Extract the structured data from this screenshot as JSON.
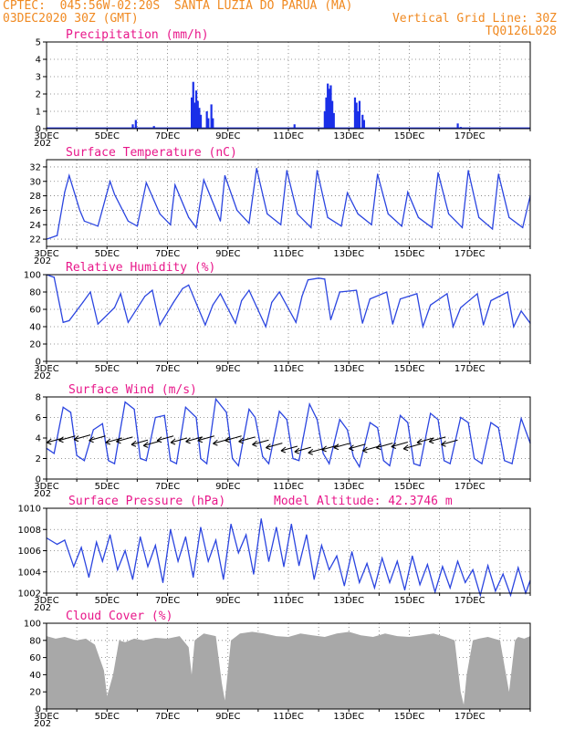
{
  "header": {
    "line1": "CPTEC:  045:56W-02:20S  SANTA LUZIA DO PARUA (MA)",
    "line2_left": "03DEC2020 30Z (GMT)",
    "line2_right": "Vertical Grid Line: 30Z",
    "line3_right": "TQ0126L028"
  },
  "model_altitude": "Model Altitude: 42.3746 m",
  "x_tick_labels": [
    "3DEC",
    "5DEC",
    "7DEC",
    "9DEC",
    "11DEC",
    "13DEC",
    "15DEC",
    "17DEC"
  ],
  "year_stub": "202",
  "colors": {
    "header": "#f08a22",
    "title": "#e8178a",
    "line": "#2b45e0",
    "bar": "#1a2fe8",
    "cloud": "#a8a8a8"
  },
  "chart_data": [
    {
      "type": "bar",
      "title": "Precipitation (mm/h)",
      "ylim": [
        0,
        5
      ],
      "yticks": [
        0,
        1,
        2,
        3,
        4,
        5
      ],
      "x_unit": "days since 03DEC 00Z",
      "x_range": [
        0,
        16
      ],
      "bars": [
        [
          2.85,
          0.25
        ],
        [
          2.95,
          0.5
        ],
        [
          3.55,
          0.15
        ],
        [
          4.8,
          1.8
        ],
        [
          4.85,
          2.7
        ],
        [
          4.9,
          1.5
        ],
        [
          4.95,
          2.2
        ],
        [
          5.0,
          1.6
        ],
        [
          5.05,
          1.2
        ],
        [
          5.1,
          0.8
        ],
        [
          5.3,
          1.0
        ],
        [
          5.35,
          0.6
        ],
        [
          5.45,
          1.4
        ],
        [
          5.5,
          0.6
        ],
        [
          8.2,
          0.25
        ],
        [
          9.2,
          1.0
        ],
        [
          9.25,
          1.8
        ],
        [
          9.3,
          2.6
        ],
        [
          9.35,
          2.3
        ],
        [
          9.4,
          2.5
        ],
        [
          9.45,
          1.6
        ],
        [
          9.5,
          0.9
        ],
        [
          10.2,
          1.8
        ],
        [
          10.25,
          1.5
        ],
        [
          10.3,
          1.0
        ],
        [
          10.35,
          1.6
        ],
        [
          10.45,
          0.8
        ],
        [
          10.5,
          0.5
        ],
        [
          13.6,
          0.3
        ],
        [
          13.7,
          0.1
        ]
      ]
    },
    {
      "type": "line",
      "title": "Surface Temperature (nC)",
      "ylim": [
        21,
        33
      ],
      "yticks": [
        22,
        24,
        26,
        28,
        30,
        32
      ],
      "x": [
        0,
        0.35,
        0.6,
        0.75,
        1.1,
        1.25,
        1.7,
        2.1,
        2.25,
        2.7,
        3.0,
        3.3,
        3.75,
        4.1,
        4.25,
        4.7,
        4.95,
        5.2,
        5.75,
        5.9,
        6.3,
        6.7,
        6.95,
        7.3,
        7.75,
        7.95,
        8.3,
        8.75,
        8.95,
        9.3,
        9.75,
        9.95,
        10.3,
        10.75,
        10.95,
        11.3,
        11.75,
        11.95,
        12.3,
        12.75,
        12.95,
        13.3,
        13.75,
        13.95,
        14.3,
        14.75,
        14.95,
        15.3,
        15.75,
        16.0
      ],
      "y": [
        22.0,
        22.5,
        28.5,
        30.8,
        26.0,
        24.5,
        23.8,
        30.0,
        28.2,
        24.5,
        23.8,
        29.8,
        25.5,
        24.0,
        29.5,
        25.0,
        23.6,
        30.2,
        24.5,
        30.8,
        26.0,
        24.2,
        31.8,
        25.5,
        24.0,
        31.5,
        25.5,
        23.6,
        31.5,
        25.0,
        23.8,
        28.4,
        25.5,
        24.0,
        31.0,
        25.5,
        23.8,
        28.5,
        25.0,
        23.6,
        31.2,
        25.5,
        23.6,
        31.5,
        25.0,
        23.4,
        31.0,
        25.0,
        23.6,
        28.0
      ]
    },
    {
      "type": "line",
      "title": "Relative Humidity (%)",
      "ylim": [
        0,
        100
      ],
      "yticks": [
        0,
        20,
        40,
        60,
        80,
        100
      ],
      "x": [
        0,
        0.25,
        0.55,
        0.75,
        1.2,
        1.45,
        1.7,
        2.25,
        2.45,
        2.7,
        3.25,
        3.5,
        3.75,
        4.2,
        4.5,
        4.7,
        5.25,
        5.5,
        5.75,
        6.25,
        6.45,
        6.7,
        7.25,
        7.45,
        7.7,
        8.25,
        8.45,
        8.65,
        9.0,
        9.2,
        9.4,
        9.7,
        10.25,
        10.45,
        10.7,
        11.25,
        11.45,
        11.7,
        12.25,
        12.45,
        12.7,
        13.25,
        13.45,
        13.7,
        14.25,
        14.45,
        14.7,
        15.25,
        15.45,
        15.7,
        16.0
      ],
      "y": [
        100,
        97,
        45,
        47,
        68,
        80,
        43,
        62,
        78,
        45,
        75,
        82,
        42,
        68,
        84,
        88,
        42,
        65,
        78,
        44,
        70,
        82,
        40,
        68,
        80,
        45,
        75,
        94,
        96,
        95,
        48,
        80,
        82,
        44,
        72,
        80,
        43,
        72,
        78,
        40,
        65,
        78,
        40,
        62,
        78,
        42,
        70,
        80,
        40,
        58,
        44
      ]
    },
    {
      "type": "line",
      "title": "Surface Wind (m/s)",
      "ylim": [
        0,
        8
      ],
      "yticks": [
        0,
        2,
        4,
        6,
        8
      ],
      "x": [
        0,
        0.25,
        0.55,
        0.8,
        1.0,
        1.25,
        1.55,
        1.85,
        2.05,
        2.25,
        2.6,
        2.9,
        3.1,
        3.3,
        3.6,
        3.9,
        4.1,
        4.3,
        4.6,
        4.95,
        5.1,
        5.3,
        5.6,
        5.95,
        6.15,
        6.35,
        6.7,
        6.9,
        7.15,
        7.35,
        7.7,
        7.95,
        8.15,
        8.35,
        8.7,
        8.95,
        9.15,
        9.35,
        9.7,
        9.95,
        10.15,
        10.35,
        10.7,
        10.95,
        11.15,
        11.35,
        11.7,
        11.95,
        12.15,
        12.35,
        12.7,
        12.95,
        13.15,
        13.35,
        13.7,
        13.95,
        14.15,
        14.4,
        14.7,
        14.95,
        15.15,
        15.4,
        15.7,
        16.0
      ],
      "y": [
        3.0,
        2.5,
        7.0,
        6.5,
        2.3,
        1.8,
        4.8,
        5.4,
        1.8,
        1.5,
        7.5,
        6.8,
        2.0,
        1.8,
        6.0,
        6.2,
        1.8,
        1.5,
        7.0,
        6.0,
        2.0,
        1.5,
        7.8,
        6.5,
        2.0,
        1.3,
        6.8,
        6.0,
        2.2,
        1.5,
        6.6,
        5.8,
        2.0,
        1.8,
        7.3,
        5.8,
        2.5,
        1.5,
        5.8,
        4.8,
        2.2,
        1.2,
        5.5,
        5.0,
        1.8,
        1.3,
        6.2,
        5.5,
        1.5,
        1.3,
        6.4,
        5.8,
        1.8,
        1.5,
        6.0,
        5.5,
        2.0,
        1.5,
        5.5,
        5.0,
        1.8,
        1.5,
        5.9,
        3.5
      ],
      "barbs": [
        [
          0.55,
          4.0
        ],
        [
          0.95,
          4.2
        ],
        [
          1.45,
          4.3
        ],
        [
          1.95,
          4.2
        ],
        [
          2.5,
          4.0
        ],
        [
          2.85,
          4.1
        ],
        [
          3.35,
          3.8
        ],
        [
          3.75,
          3.7
        ],
        [
          4.2,
          4.2
        ],
        [
          4.65,
          4.0
        ],
        [
          5.15,
          4.1
        ],
        [
          5.55,
          4.2
        ],
        [
          6.05,
          3.9
        ],
        [
          6.45,
          4.2
        ],
        [
          6.9,
          4.1
        ],
        [
          7.35,
          3.8
        ],
        [
          7.8,
          3.5
        ],
        [
          8.3,
          3.2
        ],
        [
          8.75,
          3.1
        ],
        [
          9.2,
          3.0
        ],
        [
          9.65,
          3.3
        ],
        [
          10.05,
          3.5
        ],
        [
          10.55,
          3.4
        ],
        [
          11.0,
          3.2
        ],
        [
          11.45,
          3.5
        ],
        [
          11.95,
          3.6
        ],
        [
          12.35,
          3.4
        ],
        [
          12.8,
          4.0
        ],
        [
          13.2,
          4.1
        ],
        [
          13.6,
          3.8
        ]
      ]
    },
    {
      "type": "line",
      "title": "Surface Pressure (hPa)",
      "ylim": [
        1002,
        1010
      ],
      "yticks": [
        1002,
        1004,
        1006,
        1008,
        1010
      ],
      "x": [
        0,
        0.35,
        0.6,
        0.9,
        1.15,
        1.4,
        1.65,
        1.85,
        2.1,
        2.35,
        2.6,
        2.85,
        3.1,
        3.35,
        3.6,
        3.85,
        4.1,
        4.35,
        4.6,
        4.85,
        5.1,
        5.35,
        5.6,
        5.85,
        6.1,
        6.35,
        6.6,
        6.85,
        7.1,
        7.35,
        7.6,
        7.85,
        8.1,
        8.35,
        8.6,
        8.85,
        9.1,
        9.35,
        9.6,
        9.85,
        10.1,
        10.35,
        10.6,
        10.85,
        11.1,
        11.35,
        11.6,
        11.85,
        12.1,
        12.35,
        12.6,
        12.85,
        13.1,
        13.35,
        13.6,
        13.85,
        14.1,
        14.35,
        14.6,
        14.85,
        15.1,
        15.35,
        15.6,
        15.85,
        16.0
      ],
      "y": [
        1007.2,
        1006.6,
        1007.0,
        1004.5,
        1006.3,
        1003.5,
        1006.8,
        1005.0,
        1007.5,
        1004.2,
        1006.0,
        1003.3,
        1007.3,
        1004.5,
        1006.5,
        1003.0,
        1008.0,
        1005.0,
        1007.3,
        1003.5,
        1008.2,
        1005.0,
        1007.0,
        1003.3,
        1008.5,
        1005.8,
        1007.5,
        1003.8,
        1009.0,
        1005.0,
        1008.2,
        1004.5,
        1008.5,
        1004.6,
        1007.5,
        1003.3,
        1006.5,
        1004.2,
        1005.5,
        1002.7,
        1005.9,
        1003.0,
        1004.8,
        1002.5,
        1005.3,
        1003.0,
        1005.0,
        1002.3,
        1005.5,
        1002.8,
        1004.7,
        1002.1,
        1004.5,
        1002.5,
        1005.0,
        1003.0,
        1004.2,
        1001.8,
        1004.6,
        1002.2,
        1003.8,
        1001.8,
        1004.4,
        1002.0,
        1003.2
      ]
    },
    {
      "type": "area",
      "title": "Cloud Cover (%)",
      "ylim": [
        0,
        100
      ],
      "yticks": [
        0,
        20,
        40,
        60,
        80,
        100
      ],
      "x": [
        0,
        0.3,
        0.6,
        1.0,
        1.3,
        1.6,
        1.9,
        2.0,
        2.2,
        2.4,
        2.6,
        2.9,
        3.2,
        3.6,
        4.0,
        4.4,
        4.7,
        4.8,
        4.9,
        5.2,
        5.6,
        5.8,
        5.9,
        6.1,
        6.4,
        6.8,
        7.2,
        7.6,
        8.0,
        8.4,
        8.8,
        9.2,
        9.6,
        10.0,
        10.4,
        10.8,
        11.2,
        11.6,
        12.0,
        12.4,
        12.8,
        13.2,
        13.5,
        13.7,
        13.8,
        13.9,
        14.1,
        14.3,
        14.6,
        15.0,
        15.3,
        15.5,
        15.6,
        15.8,
        16.0
      ],
      "y": [
        85,
        82,
        84,
        80,
        82,
        75,
        45,
        15,
        40,
        80,
        78,
        82,
        80,
        83,
        82,
        85,
        72,
        40,
        80,
        88,
        85,
        30,
        10,
        80,
        88,
        90,
        88,
        85,
        84,
        88,
        86,
        84,
        88,
        90,
        86,
        84,
        88,
        85,
        84,
        86,
        88,
        84,
        80,
        20,
        5,
        40,
        80,
        82,
        84,
        80,
        20,
        80,
        84,
        82,
        85
      ]
    }
  ]
}
